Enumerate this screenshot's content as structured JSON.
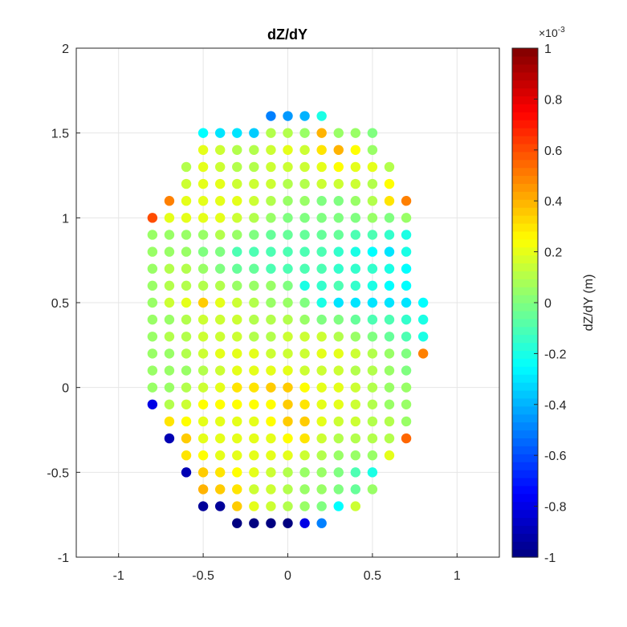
{
  "chart_data": {
    "type": "scatter",
    "title": "dZ/dY",
    "xlabel": "",
    "ylabel": "",
    "xlim": [
      -1.25,
      1.25
    ],
    "ylim": [
      -1,
      2
    ],
    "xticks": [
      "-1",
      "-0.5",
      "0",
      "0.5",
      "1"
    ],
    "yticks": [
      "-1",
      "-0.5",
      "0",
      "0.5",
      "1",
      "1.5",
      "2"
    ],
    "grid": true,
    "colorbar": {
      "label": "dZ/dY (m)",
      "exponent": "×10",
      "exponent_power": "-3",
      "range": [
        -1,
        1
      ],
      "ticks": [
        "-1",
        "-0.8",
        "-0.6",
        "-0.4",
        "-0.2",
        "0",
        "0.2",
        "0.4",
        "0.6",
        "0.8",
        "1"
      ],
      "colormap": "jet"
    },
    "points": [
      {
        "y": 1.6,
        "xs": [
          -0.1,
          0,
          0.1,
          0.2
        ],
        "v": [
          -0.5,
          -0.45,
          -0.4,
          -0.2
        ]
      },
      {
        "y": 1.5,
        "xs": [
          -0.5,
          -0.4,
          -0.3,
          -0.2,
          -0.1,
          0,
          0.1,
          0.2,
          0.3,
          0.4,
          0.5
        ],
        "v": [
          -0.25,
          -0.3,
          -0.3,
          -0.35,
          0.1,
          0.1,
          0.05,
          0.4,
          0.05,
          0.05,
          0
        ]
      },
      {
        "y": 1.4,
        "xs": [
          -0.5,
          -0.4,
          -0.3,
          -0.2,
          -0.1,
          0,
          0.1,
          0.2,
          0.3,
          0.4,
          0.5
        ],
        "v": [
          0.2,
          0.15,
          0.1,
          0.1,
          0.15,
          0.2,
          0.15,
          0.3,
          0.4,
          0.25,
          0.05
        ]
      },
      {
        "y": 1.3,
        "xs": [
          -0.6,
          -0.5,
          -0.4,
          -0.3,
          -0.2,
          -0.1,
          0,
          0.1,
          0.2,
          0.3,
          0.4,
          0.5,
          0.6
        ],
        "v": [
          0.1,
          0.2,
          0.15,
          0.1,
          0.1,
          0.15,
          0.15,
          0.15,
          0.2,
          0.25,
          0.2,
          0.2,
          0.1
        ]
      },
      {
        "y": 1.2,
        "xs": [
          -0.6,
          -0.5,
          -0.4,
          -0.3,
          -0.2,
          -0.1,
          0,
          0.1,
          0.2,
          0.3,
          0.4,
          0.5,
          0.6
        ],
        "v": [
          0.15,
          0.2,
          0.2,
          0.15,
          0.15,
          0.15,
          0.1,
          0.1,
          0.15,
          0.15,
          0.15,
          0.1,
          0.25
        ]
      },
      {
        "y": 1.1,
        "xs": [
          -0.7,
          -0.6,
          -0.5,
          -0.4,
          -0.3,
          -0.2,
          -0.1,
          0,
          0.1,
          0.2,
          0.3,
          0.4,
          0.5,
          0.6,
          0.7
        ],
        "v": [
          0.5,
          0.2,
          0.2,
          0.2,
          0.2,
          0.15,
          0.1,
          0.05,
          0.05,
          0.0,
          0.0,
          0.05,
          0.1,
          0.3,
          0.5
        ]
      },
      {
        "y": 1.0,
        "xs": [
          -0.8,
          -0.7,
          -0.6,
          -0.5,
          -0.4,
          -0.3,
          -0.2,
          -0.1,
          0,
          0.1,
          0.2,
          0.3,
          0.4,
          0.5,
          0.6,
          0.7
        ],
        "v": [
          0.6,
          0.2,
          0.2,
          0.2,
          0.2,
          0.15,
          0.1,
          0.05,
          0.0,
          0.0,
          0.0,
          0.0,
          0.0,
          0.05,
          0.0,
          0.05
        ]
      },
      {
        "y": 0.9,
        "xs": [
          -0.8,
          -0.7,
          -0.6,
          -0.5,
          -0.4,
          -0.3,
          -0.2,
          -0.1,
          0,
          0.1,
          0.2,
          0.3,
          0.4,
          0.5,
          0.6,
          0.7
        ],
        "v": [
          0.05,
          0.05,
          0.05,
          0.05,
          0.1,
          0.05,
          0.0,
          -0.05,
          -0.05,
          -0.05,
          -0.05,
          -0.05,
          -0.1,
          -0.1,
          -0.15,
          -0.2
        ]
      },
      {
        "y": 0.8,
        "xs": [
          -0.8,
          -0.7,
          -0.6,
          -0.5,
          -0.4,
          -0.3,
          -0.2,
          -0.1,
          0,
          0.1,
          0.2,
          0.3,
          0.4,
          0.5,
          0.6,
          0.7
        ],
        "v": [
          0.05,
          0.05,
          0.05,
          0.0,
          0.0,
          -0.1,
          -0.1,
          -0.1,
          -0.1,
          -0.1,
          -0.1,
          -0.15,
          -0.2,
          -0.25,
          -0.3,
          -0.2
        ]
      },
      {
        "y": 0.7,
        "xs": [
          -0.8,
          -0.7,
          -0.6,
          -0.5,
          -0.4,
          -0.3,
          -0.2,
          -0.1,
          0,
          0.1,
          0.2,
          0.3,
          0.4,
          0.5,
          0.6,
          0.7
        ],
        "v": [
          0.05,
          0.1,
          0.1,
          0.05,
          0.0,
          -0.05,
          -0.05,
          -0.1,
          -0.1,
          -0.1,
          -0.1,
          -0.15,
          -0.15,
          -0.15,
          -0.2,
          -0.25
        ]
      },
      {
        "y": 0.6,
        "xs": [
          -0.8,
          -0.7,
          -0.6,
          -0.5,
          -0.4,
          -0.3,
          -0.2,
          -0.1,
          0,
          0.1,
          0.2,
          0.3,
          0.4,
          0.5,
          0.6,
          0.7
        ],
        "v": [
          0.05,
          0.1,
          0.1,
          0.1,
          0.1,
          0.05,
          0.05,
          0.05,
          0.0,
          -0.2,
          -0.15,
          -0.1,
          -0.15,
          -0.2,
          -0.25,
          -0.25
        ]
      },
      {
        "y": 0.5,
        "xs": [
          -0.8,
          -0.7,
          -0.6,
          -0.5,
          -0.4,
          -0.3,
          -0.2,
          -0.1,
          0,
          0.1,
          0.2,
          0.3,
          0.4,
          0.5,
          0.6,
          0.7,
          0.8
        ],
        "v": [
          0.05,
          0.15,
          0.2,
          0.35,
          0.2,
          0.15,
          0.1,
          0.05,
          0.05,
          0.0,
          -0.2,
          -0.3,
          -0.3,
          -0.3,
          -0.3,
          -0.3,
          -0.25
        ]
      },
      {
        "y": 0.4,
        "xs": [
          -0.8,
          -0.7,
          -0.6,
          -0.5,
          -0.4,
          -0.3,
          -0.2,
          -0.1,
          0,
          0.1,
          0.2,
          0.3,
          0.4,
          0.5,
          0.6,
          0.7,
          0.8
        ],
        "v": [
          0.05,
          0.05,
          0.1,
          0.15,
          0.15,
          0.15,
          0.1,
          0.1,
          0.1,
          0.05,
          0.0,
          0.0,
          -0.05,
          -0.1,
          -0.1,
          -0.15,
          -0.2
        ]
      },
      {
        "y": 0.3,
        "xs": [
          -0.8,
          -0.7,
          -0.6,
          -0.5,
          -0.4,
          -0.3,
          -0.2,
          -0.1,
          0,
          0.1,
          0.2,
          0.3,
          0.4,
          0.5,
          0.6,
          0.7,
          0.8
        ],
        "v": [
          0.05,
          0.1,
          0.1,
          0.15,
          0.15,
          0.15,
          0.1,
          0.1,
          0.15,
          0.15,
          0.15,
          0.1,
          0.05,
          0.0,
          -0.05,
          -0.1,
          -0.2
        ]
      },
      {
        "y": 0.2,
        "xs": [
          -0.8,
          -0.7,
          -0.6,
          -0.5,
          -0.4,
          -0.3,
          -0.2,
          -0.1,
          0,
          0.1,
          0.2,
          0.3,
          0.4,
          0.5,
          0.6,
          0.7,
          0.8
        ],
        "v": [
          0.05,
          0.05,
          0.1,
          0.15,
          0.2,
          0.2,
          0.2,
          0.15,
          0.15,
          0.15,
          0.2,
          0.2,
          0.15,
          0.1,
          0.05,
          0.0,
          0.5
        ]
      },
      {
        "y": 0.1,
        "xs": [
          -0.8,
          -0.7,
          -0.6,
          -0.5,
          -0.4,
          -0.3,
          -0.2,
          -0.1,
          0,
          0.1,
          0.2,
          0.3,
          0.4,
          0.5,
          0.6,
          0.7
        ],
        "v": [
          0.05,
          0.05,
          0.05,
          0.1,
          0.15,
          0.2,
          0.2,
          0.2,
          0.2,
          0.15,
          0.15,
          0.15,
          0.1,
          0.1,
          0.05,
          0.0
        ]
      },
      {
        "y": 0.0,
        "xs": [
          -0.8,
          -0.7,
          -0.6,
          -0.5,
          -0.4,
          -0.3,
          -0.2,
          -0.1,
          0,
          0.1,
          0.2,
          0.3,
          0.4,
          0.5,
          0.6,
          0.7
        ],
        "v": [
          0.05,
          0.05,
          0.1,
          0.15,
          0.2,
          0.3,
          0.3,
          0.35,
          0.35,
          0.25,
          0.2,
          0.2,
          0.15,
          0.1,
          0.05,
          0.05
        ]
      },
      {
        "y": -0.1,
        "xs": [
          -0.8,
          -0.7,
          -0.6,
          -0.5,
          -0.4,
          -0.3,
          -0.2,
          -0.1,
          0,
          0.1,
          0.2,
          0.3,
          0.4,
          0.5,
          0.6,
          0.7
        ],
        "v": [
          -0.8,
          0.1,
          0.15,
          0.25,
          0.25,
          0.25,
          0.25,
          0.25,
          0.35,
          0.3,
          0.2,
          0.2,
          0.15,
          0.1,
          0.05,
          0.05
        ]
      },
      {
        "y": -0.2,
        "xs": [
          -0.7,
          -0.6,
          -0.5,
          -0.4,
          -0.3,
          -0.2,
          -0.1,
          0,
          0.1,
          0.2,
          0.3,
          0.4,
          0.5,
          0.6,
          0.7
        ],
        "v": [
          0.3,
          0.25,
          0.2,
          0.2,
          0.2,
          0.2,
          0.25,
          0.35,
          0.35,
          0.2,
          0.15,
          0.15,
          0.1,
          0.1,
          0.05
        ]
      },
      {
        "y": -0.3,
        "xs": [
          -0.7,
          -0.6,
          -0.5,
          -0.4,
          -0.3,
          -0.2,
          -0.1,
          0,
          0.1,
          0.2,
          0.3,
          0.4,
          0.5,
          0.6,
          0.7
        ],
        "v": [
          -0.9,
          0.35,
          0.2,
          0.2,
          0.2,
          0.2,
          0.2,
          0.25,
          0.3,
          0.15,
          0.1,
          0.1,
          0.1,
          0.1,
          0.55
        ]
      },
      {
        "y": -0.4,
        "xs": [
          -0.6,
          -0.5,
          -0.4,
          -0.3,
          -0.2,
          -0.1,
          0,
          0.1,
          0.2,
          0.3,
          0.4,
          0.5,
          0.6
        ],
        "v": [
          0.3,
          0.25,
          0.2,
          0.2,
          0.2,
          0.2,
          0.2,
          0.15,
          0.1,
          0.05,
          0.05,
          0.05,
          0.2
        ]
      },
      {
        "y": -0.5,
        "xs": [
          -0.6,
          -0.5,
          -0.4,
          -0.3,
          -0.2,
          -0.1,
          0,
          0.1,
          0.2,
          0.3,
          0.4,
          0.5
        ],
        "v": [
          -0.9,
          0.35,
          0.3,
          0.25,
          0.2,
          0.15,
          0.1,
          0.05,
          0.05,
          0.0,
          -0.1,
          -0.2
        ]
      },
      {
        "y": -0.6,
        "xs": [
          -0.5,
          -0.4,
          -0.3,
          -0.2,
          -0.1,
          0,
          0.1,
          0.2,
          0.3,
          0.4,
          0.5
        ],
        "v": [
          0.4,
          0.35,
          0.3,
          0.15,
          0.15,
          0.1,
          0.05,
          0.05,
          0.0,
          -0.05,
          0.05
        ]
      },
      {
        "y": -0.7,
        "xs": [
          -0.5,
          -0.4,
          -0.3,
          -0.2,
          -0.1,
          0,
          0.1,
          0.2,
          0.3,
          0.4
        ],
        "v": [
          -0.95,
          -0.95,
          0.35,
          0.2,
          0.15,
          0.1,
          0.05,
          0.0,
          -0.25,
          0.15
        ]
      },
      {
        "y": -0.8,
        "xs": [
          -0.3,
          -0.2,
          -0.1,
          0,
          0.1,
          0.2
        ],
        "v": [
          -1,
          -1,
          -1,
          -1,
          -0.8,
          -0.5
        ]
      }
    ]
  }
}
